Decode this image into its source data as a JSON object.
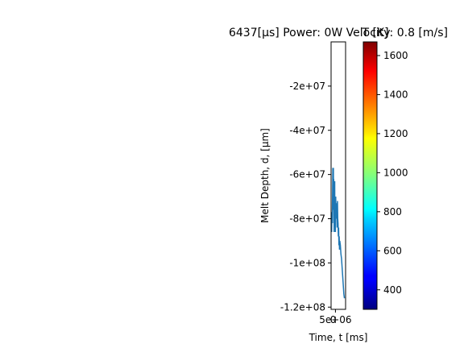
{
  "chart_data": {
    "type": "line",
    "title": "6437[μs] Power: 0W Velocity: 0.8 [m/s]",
    "xlabel": "Time, t [ms]",
    "ylabel": "Melt Depth, d, [μm]",
    "xticks": [
      {
        "value": 5000000,
        "label": "5e+06"
      }
    ],
    "x_offset_tick_label": "0",
    "yticks": [
      {
        "value": -20000000,
        "label": "-2e+07"
      },
      {
        "value": -40000000,
        "label": "-4e+07"
      },
      {
        "value": -60000000,
        "label": "-6e+07"
      },
      {
        "value": -80000000,
        "label": "-8e+07"
      },
      {
        "value": -100000000,
        "label": "-1e+08"
      },
      {
        "value": -120000000,
        "label": "-1.2e+08"
      }
    ],
    "xlim": [
      -10000000,
      40000000
    ],
    "ylim": [
      -121000000,
      0
    ],
    "series": [
      {
        "color": "#1f77b4",
        "x": [
          -9000000,
          -8000000,
          -7000000,
          -6000000,
          -5000000,
          -4000000,
          -3500000,
          -3000000,
          -2500000,
          -2000000,
          -1500000,
          -1000000,
          -500000,
          0,
          500000,
          1000000,
          1500000,
          2000000,
          2500000,
          3000000,
          4000000,
          5000000,
          6000000,
          7000000,
          8000000,
          9000000,
          10000000,
          11000000,
          12000000,
          13000000,
          14000000,
          15000000,
          16000000,
          17000000,
          18000000,
          19000000,
          20000000,
          22000000,
          24000000,
          26000000,
          28000000,
          30000000,
          32000000,
          34000000,
          36000000
        ],
        "y": [
          -78000000,
          -86000000,
          -77000000,
          -82000000,
          -70000000,
          -57000000,
          -76000000,
          -58000000,
          -70000000,
          -57000000,
          -72000000,
          -62000000,
          -82000000,
          -67000000,
          -86000000,
          -74000000,
          -82000000,
          -76000000,
          -63000000,
          -78000000,
          -72000000,
          -86000000,
          -70000000,
          -80000000,
          -73000000,
          -78000000,
          -74000000,
          -84000000,
          -72000000,
          -80000000,
          -82000000,
          -88000000,
          -84000000,
          -92000000,
          -88000000,
          -94000000,
          -90000000,
          -92000000,
          -96000000,
          -98000000,
          -102000000,
          -106000000,
          -110000000,
          -114000000,
          -116000000
        ]
      }
    ]
  },
  "colorbar": {
    "label": "T [K]",
    "min": 300,
    "max": 1670,
    "ticks": [
      400,
      600,
      800,
      1000,
      1200,
      1400,
      1600
    ],
    "colormap": "jet"
  }
}
